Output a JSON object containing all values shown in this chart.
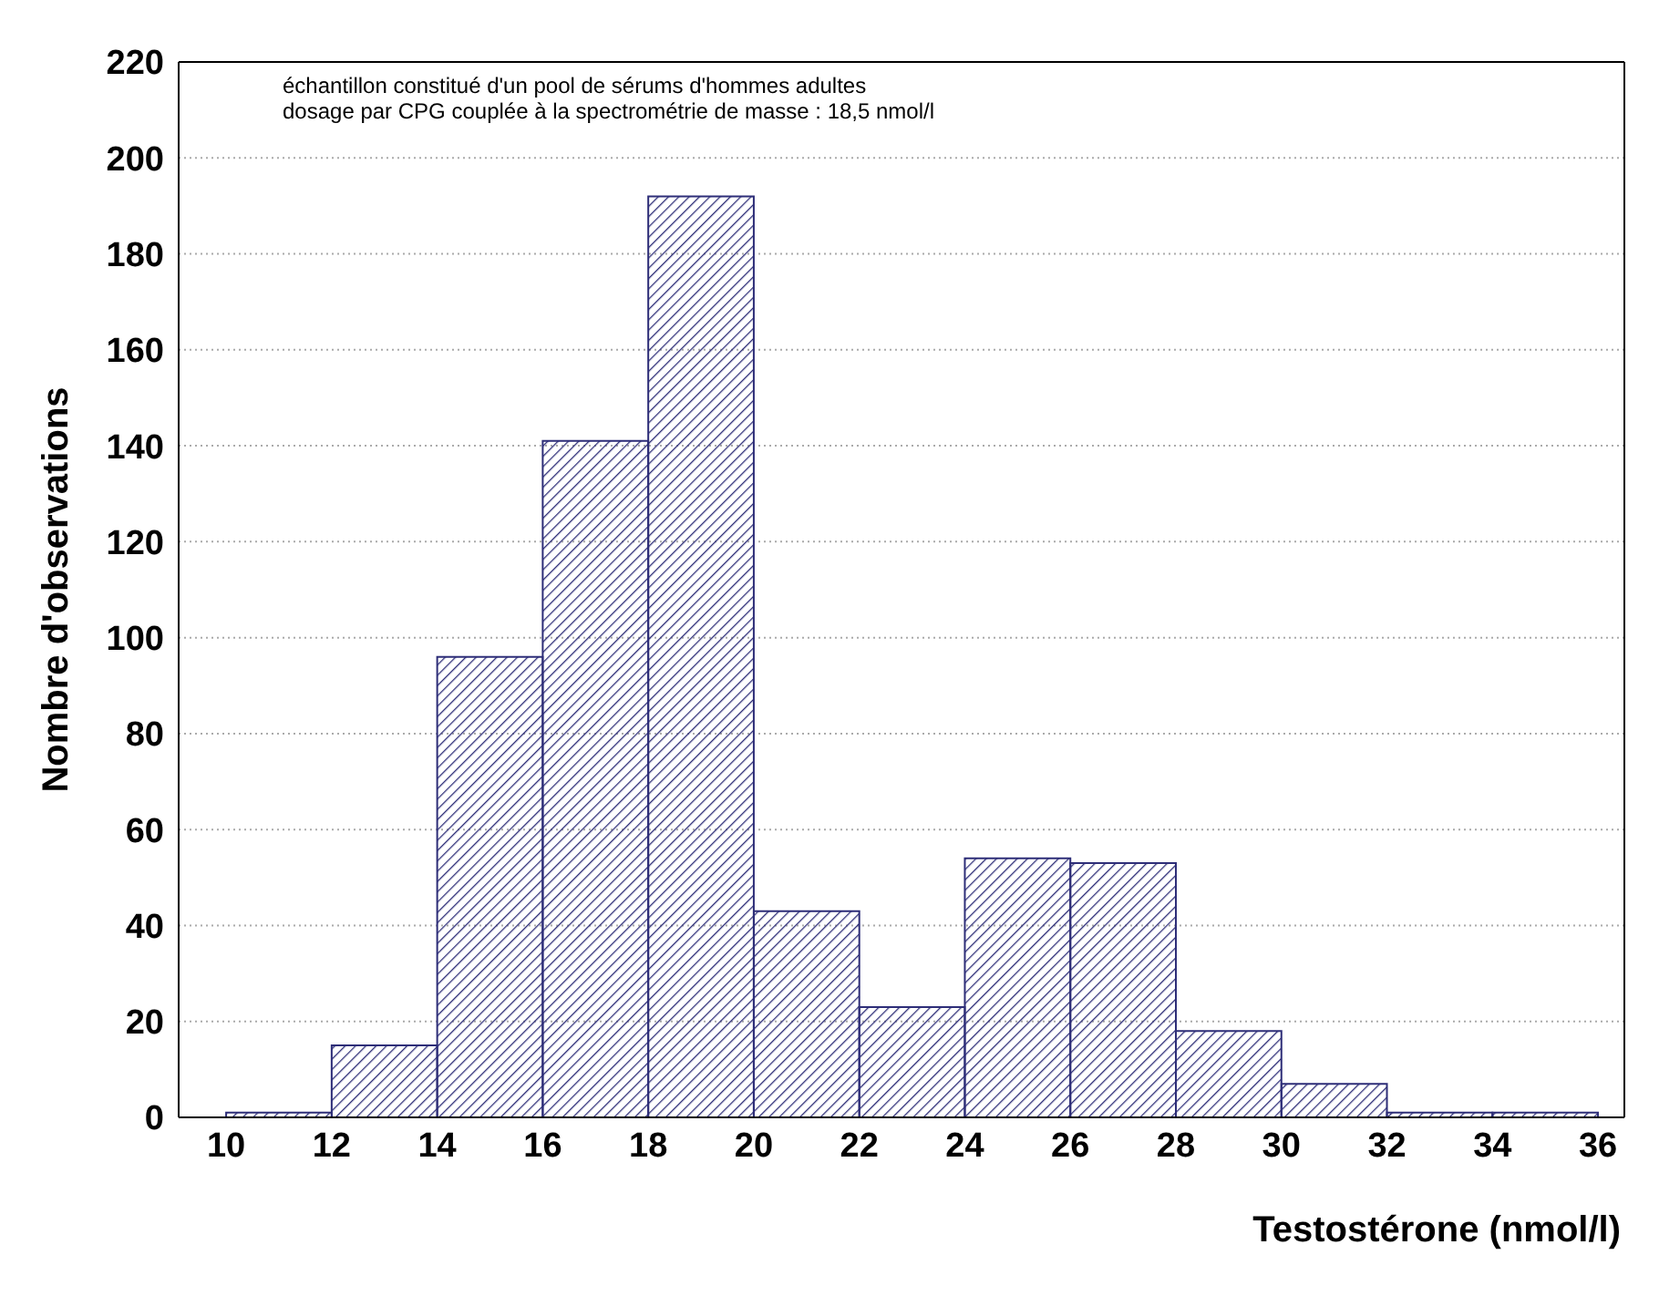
{
  "chart_data": {
    "type": "histogram",
    "xlabel": "Testostérone (nmol/l)",
    "ylabel": "Nombre d'observations",
    "annotations": [
      "échantillon constitué d'un pool de sérums d'hommes adultes",
      "dosage par CPG couplée à la spectrométrie de masse : 18,5 nmol/l"
    ],
    "bins": [
      10,
      12,
      14,
      16,
      18,
      20,
      22,
      24,
      26,
      28,
      30,
      32,
      34,
      36
    ],
    "values": [
      1,
      15,
      96,
      141,
      192,
      43,
      23,
      54,
      53,
      18,
      7,
      1,
      1
    ],
    "color": "#2e2e78",
    "xlim": [
      9.1,
      36.5
    ],
    "xticks": [
      10,
      12,
      14,
      16,
      18,
      20,
      22,
      24,
      26,
      28,
      30,
      32,
      34,
      36
    ],
    "ylim": [
      0,
      220
    ],
    "yticks": [
      0,
      20,
      40,
      60,
      80,
      100,
      120,
      140,
      160,
      180,
      200,
      220
    ],
    "grid": "y"
  }
}
